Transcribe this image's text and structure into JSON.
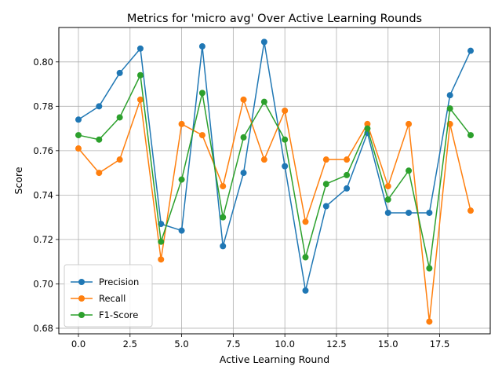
{
  "chart_data": {
    "type": "line",
    "title": "Metrics for 'micro avg' Over Active Learning Rounds",
    "xlabel": "Active Learning Round",
    "ylabel": "Score",
    "xlim": [
      -0.95,
      19.95
    ],
    "ylim": [
      0.6775,
      0.8155
    ],
    "xticks": [
      0.0,
      2.5,
      5.0,
      7.5,
      10.0,
      12.5,
      15.0,
      17.5
    ],
    "xtick_labels": [
      "0.0",
      "2.5",
      "5.0",
      "7.5",
      "10.0",
      "12.5",
      "15.0",
      "17.5"
    ],
    "yticks": [
      0.68,
      0.7,
      0.72,
      0.74,
      0.76,
      0.78,
      0.8
    ],
    "ytick_labels": [
      "0.68",
      "0.70",
      "0.72",
      "0.74",
      "0.76",
      "0.78",
      "0.80"
    ],
    "grid": true,
    "legend_position": "lower-left",
    "x": [
      0,
      1,
      2,
      3,
      4,
      5,
      6,
      7,
      8,
      9,
      10,
      11,
      12,
      13,
      14,
      15,
      16,
      17,
      18,
      19
    ],
    "series": [
      {
        "name": "Precision",
        "color": "#1f77b4",
        "values": [
          0.774,
          0.78,
          0.795,
          0.806,
          0.727,
          0.724,
          0.807,
          0.717,
          0.75,
          0.809,
          0.753,
          0.697,
          0.735,
          0.743,
          0.768,
          0.732,
          0.732,
          0.732,
          0.785,
          0.805
        ]
      },
      {
        "name": "Recall",
        "color": "#ff7f0e",
        "values": [
          0.761,
          0.75,
          0.756,
          0.783,
          0.711,
          0.772,
          0.767,
          0.744,
          0.783,
          0.756,
          0.778,
          0.728,
          0.756,
          0.756,
          0.772,
          0.744,
          0.772,
          0.683,
          0.772,
          0.733
        ]
      },
      {
        "name": "F1-Score",
        "color": "#2ca02c",
        "values": [
          0.767,
          0.765,
          0.775,
          0.794,
          0.719,
          0.747,
          0.786,
          0.73,
          0.766,
          0.782,
          0.765,
          0.712,
          0.745,
          0.749,
          0.77,
          0.738,
          0.751,
          0.707,
          0.779,
          0.767
        ]
      }
    ]
  }
}
